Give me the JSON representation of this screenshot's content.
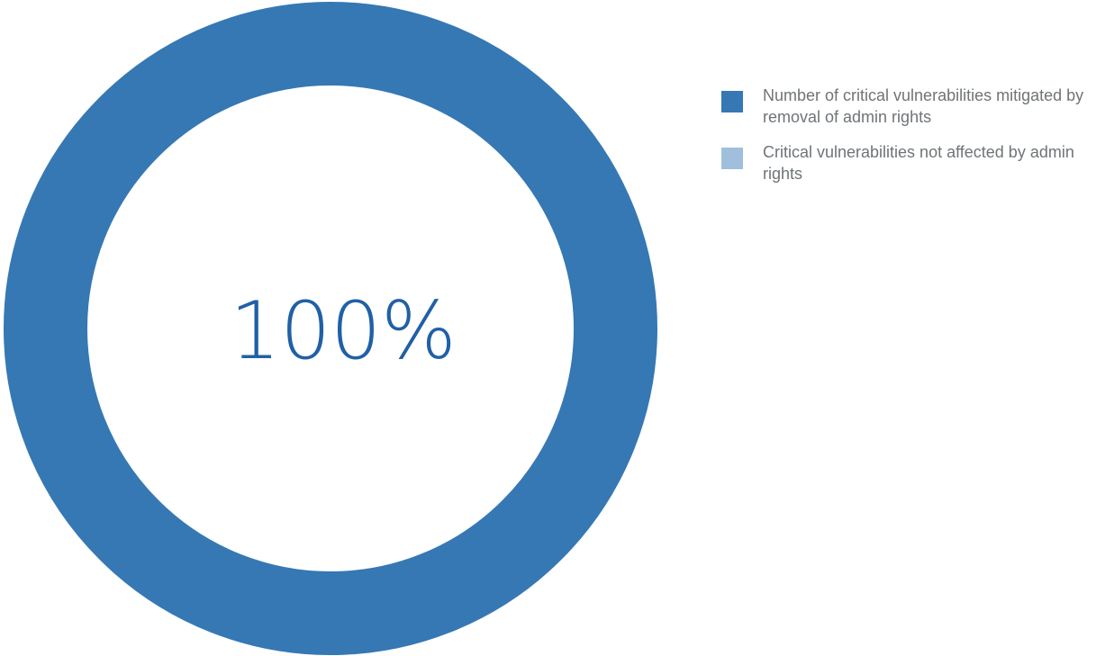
{
  "chart_data": {
    "type": "pie",
    "style": "donut",
    "center_label": "100%",
    "slices": [
      {
        "name": "Number of critical vulnerabilities mitigated by removal of admin rights",
        "value": 100,
        "color": "#3578b4"
      },
      {
        "name": "Critical vulnerabilities not affected by admin rights",
        "value": 0,
        "color": "#9fbfdc"
      }
    ],
    "legend_position": "top-right",
    "center_label_color": "#2060a6"
  }
}
